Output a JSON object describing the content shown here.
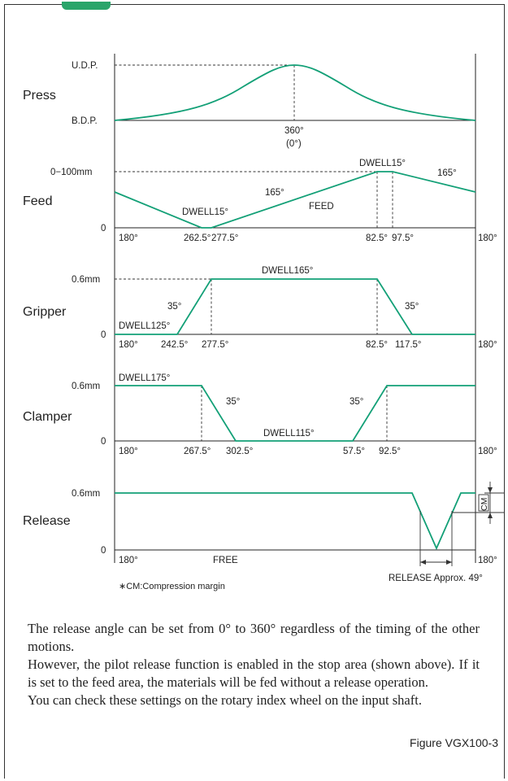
{
  "press": {
    "label": "Press",
    "udp": "U.D.P.",
    "bdp": "B.D.P.",
    "angle": "360°",
    "angle_sub": "(0°)"
  },
  "feed": {
    "label": "Feed",
    "range": "0−100mm",
    "zero": "0",
    "a180": "180°",
    "a262": "262.5°",
    "a277": "277.5°",
    "a82": "82.5°",
    "a97": "97.5°",
    "a180r": "180°",
    "dwell1": "DWELL15°",
    "dwell2": "DWELL15°",
    "ang165a": "165°",
    "ang165b": "165°",
    "feed_word": "FEED"
  },
  "gripper": {
    "label": "Gripper",
    "mm": "0.6mm",
    "zero": "0",
    "a180": "180°",
    "a242": "242.5°",
    "a277": "277.5°",
    "a82": "82.5°",
    "a117": "117.5°",
    "a180r": "180°",
    "dwell125": "DWELL125°",
    "dwell165": "DWELL165°",
    "ang35a": "35°",
    "ang35b": "35°"
  },
  "clamper": {
    "label": "Clamper",
    "mm": "0.6mm",
    "zero": "0",
    "a180": "180°",
    "a267": "267.5°",
    "a302": "302.5°",
    "a57": "57.5°",
    "a92": "92.5°",
    "a180r": "180°",
    "dwell175": "DWELL175°",
    "dwell115": "DWELL115°",
    "ang35a": "35°",
    "ang35b": "35°"
  },
  "release": {
    "label": "Release",
    "mm": "0.6mm",
    "zero": "0",
    "a180": "180°",
    "free": "FREE",
    "a180r": "180°",
    "cm": "CM",
    "approx": "RELEASE Approx. 49°"
  },
  "footnote": "∗CM:Compression margin",
  "description": [
    "The release angle can be set from 0° to 360° regardless of the timing of the other motions.",
    "However, the pilot release function is enabled in the stop area (shown above). If it is set to the feed area, the materials will be fed without a release operation.",
    "You can check these settings on the rotary index wheel on the input shaft."
  ],
  "figure_caption": "Figure VGX100-3",
  "colors": {
    "curve": "#13a077",
    "header": "#2aa56a"
  }
}
